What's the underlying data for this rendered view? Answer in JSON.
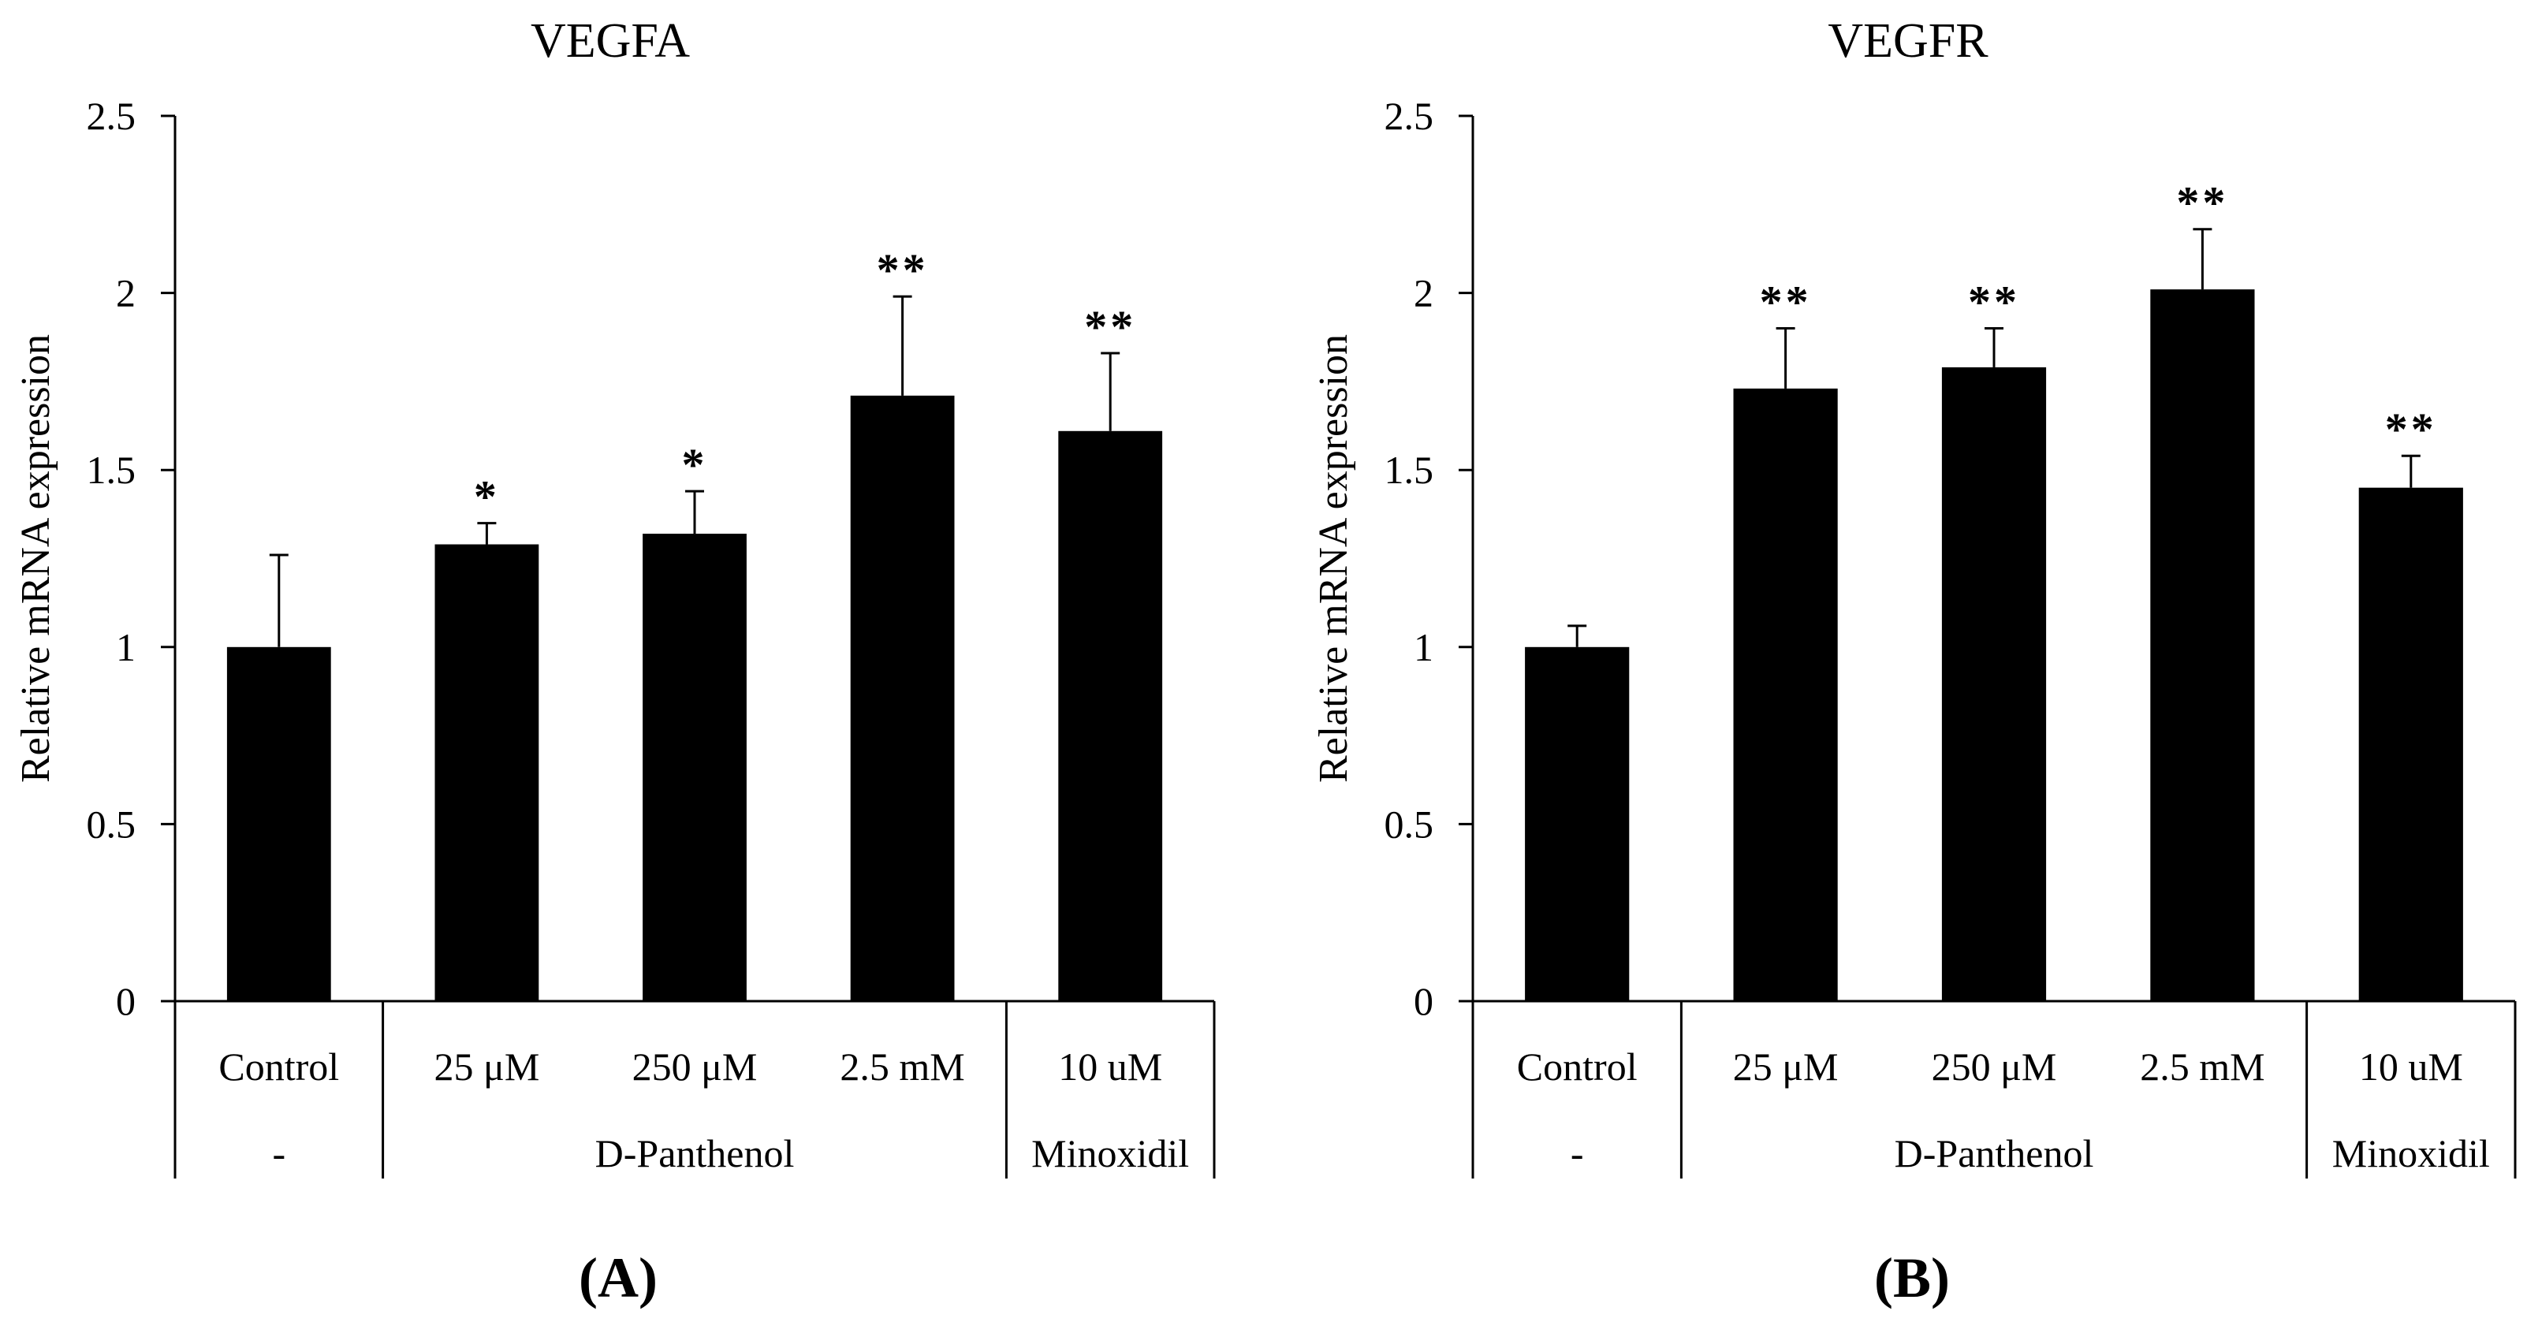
{
  "figure": {
    "panel_labels": [
      "(A)",
      "(B)"
    ]
  },
  "chart_data": [
    {
      "type": "bar",
      "title": "VEGFA",
      "ylabel": "Relative mRNA expression",
      "xlabel": "",
      "ylim": [
        0,
        2.5
      ],
      "yticks": [
        "0",
        "0.5",
        "1",
        "1.5",
        "2",
        "2.5"
      ],
      "ytick_values": [
        0,
        0.5,
        1,
        1.5,
        2,
        2.5
      ],
      "grid": false,
      "categories": [
        "Control",
        "25 μM",
        "250 μM",
        "2.5 mM",
        "10 uM"
      ],
      "values": [
        1.0,
        1.29,
        1.32,
        1.71,
        1.61
      ],
      "errors": [
        0.26,
        0.06,
        0.12,
        0.28,
        0.22
      ],
      "significance": [
        "",
        "*",
        "*",
        "**",
        "**"
      ],
      "groups": [
        {
          "label": "-",
          "start": 0,
          "end": 0
        },
        {
          "label": "D-Panthenol",
          "start": 1,
          "end": 3
        },
        {
          "label": "Minoxidil",
          "start": 4,
          "end": 4
        }
      ],
      "bar_color": "#000000",
      "panel_label": "(A)"
    },
    {
      "type": "bar",
      "title": "VEGFR",
      "ylabel": "Relative mRNA expression",
      "xlabel": "",
      "ylim": [
        0,
        2.5
      ],
      "yticks": [
        "0",
        "0.5",
        "1",
        "1.5",
        "2",
        "2.5"
      ],
      "ytick_values": [
        0,
        0.5,
        1,
        1.5,
        2,
        2.5
      ],
      "grid": false,
      "categories": [
        "Control",
        "25 μM",
        "250 μM",
        "2.5 mM",
        "10 uM"
      ],
      "values": [
        1.0,
        1.73,
        1.79,
        2.01,
        1.45
      ],
      "errors": [
        0.06,
        0.17,
        0.11,
        0.17,
        0.09
      ],
      "significance": [
        "",
        "**",
        "**",
        "**",
        "**"
      ],
      "groups": [
        {
          "label": "-",
          "start": 0,
          "end": 0
        },
        {
          "label": "D-Panthenol",
          "start": 1,
          "end": 3
        },
        {
          "label": "Minoxidil",
          "start": 4,
          "end": 4
        }
      ],
      "bar_color": "#000000",
      "panel_label": "(B)"
    }
  ]
}
